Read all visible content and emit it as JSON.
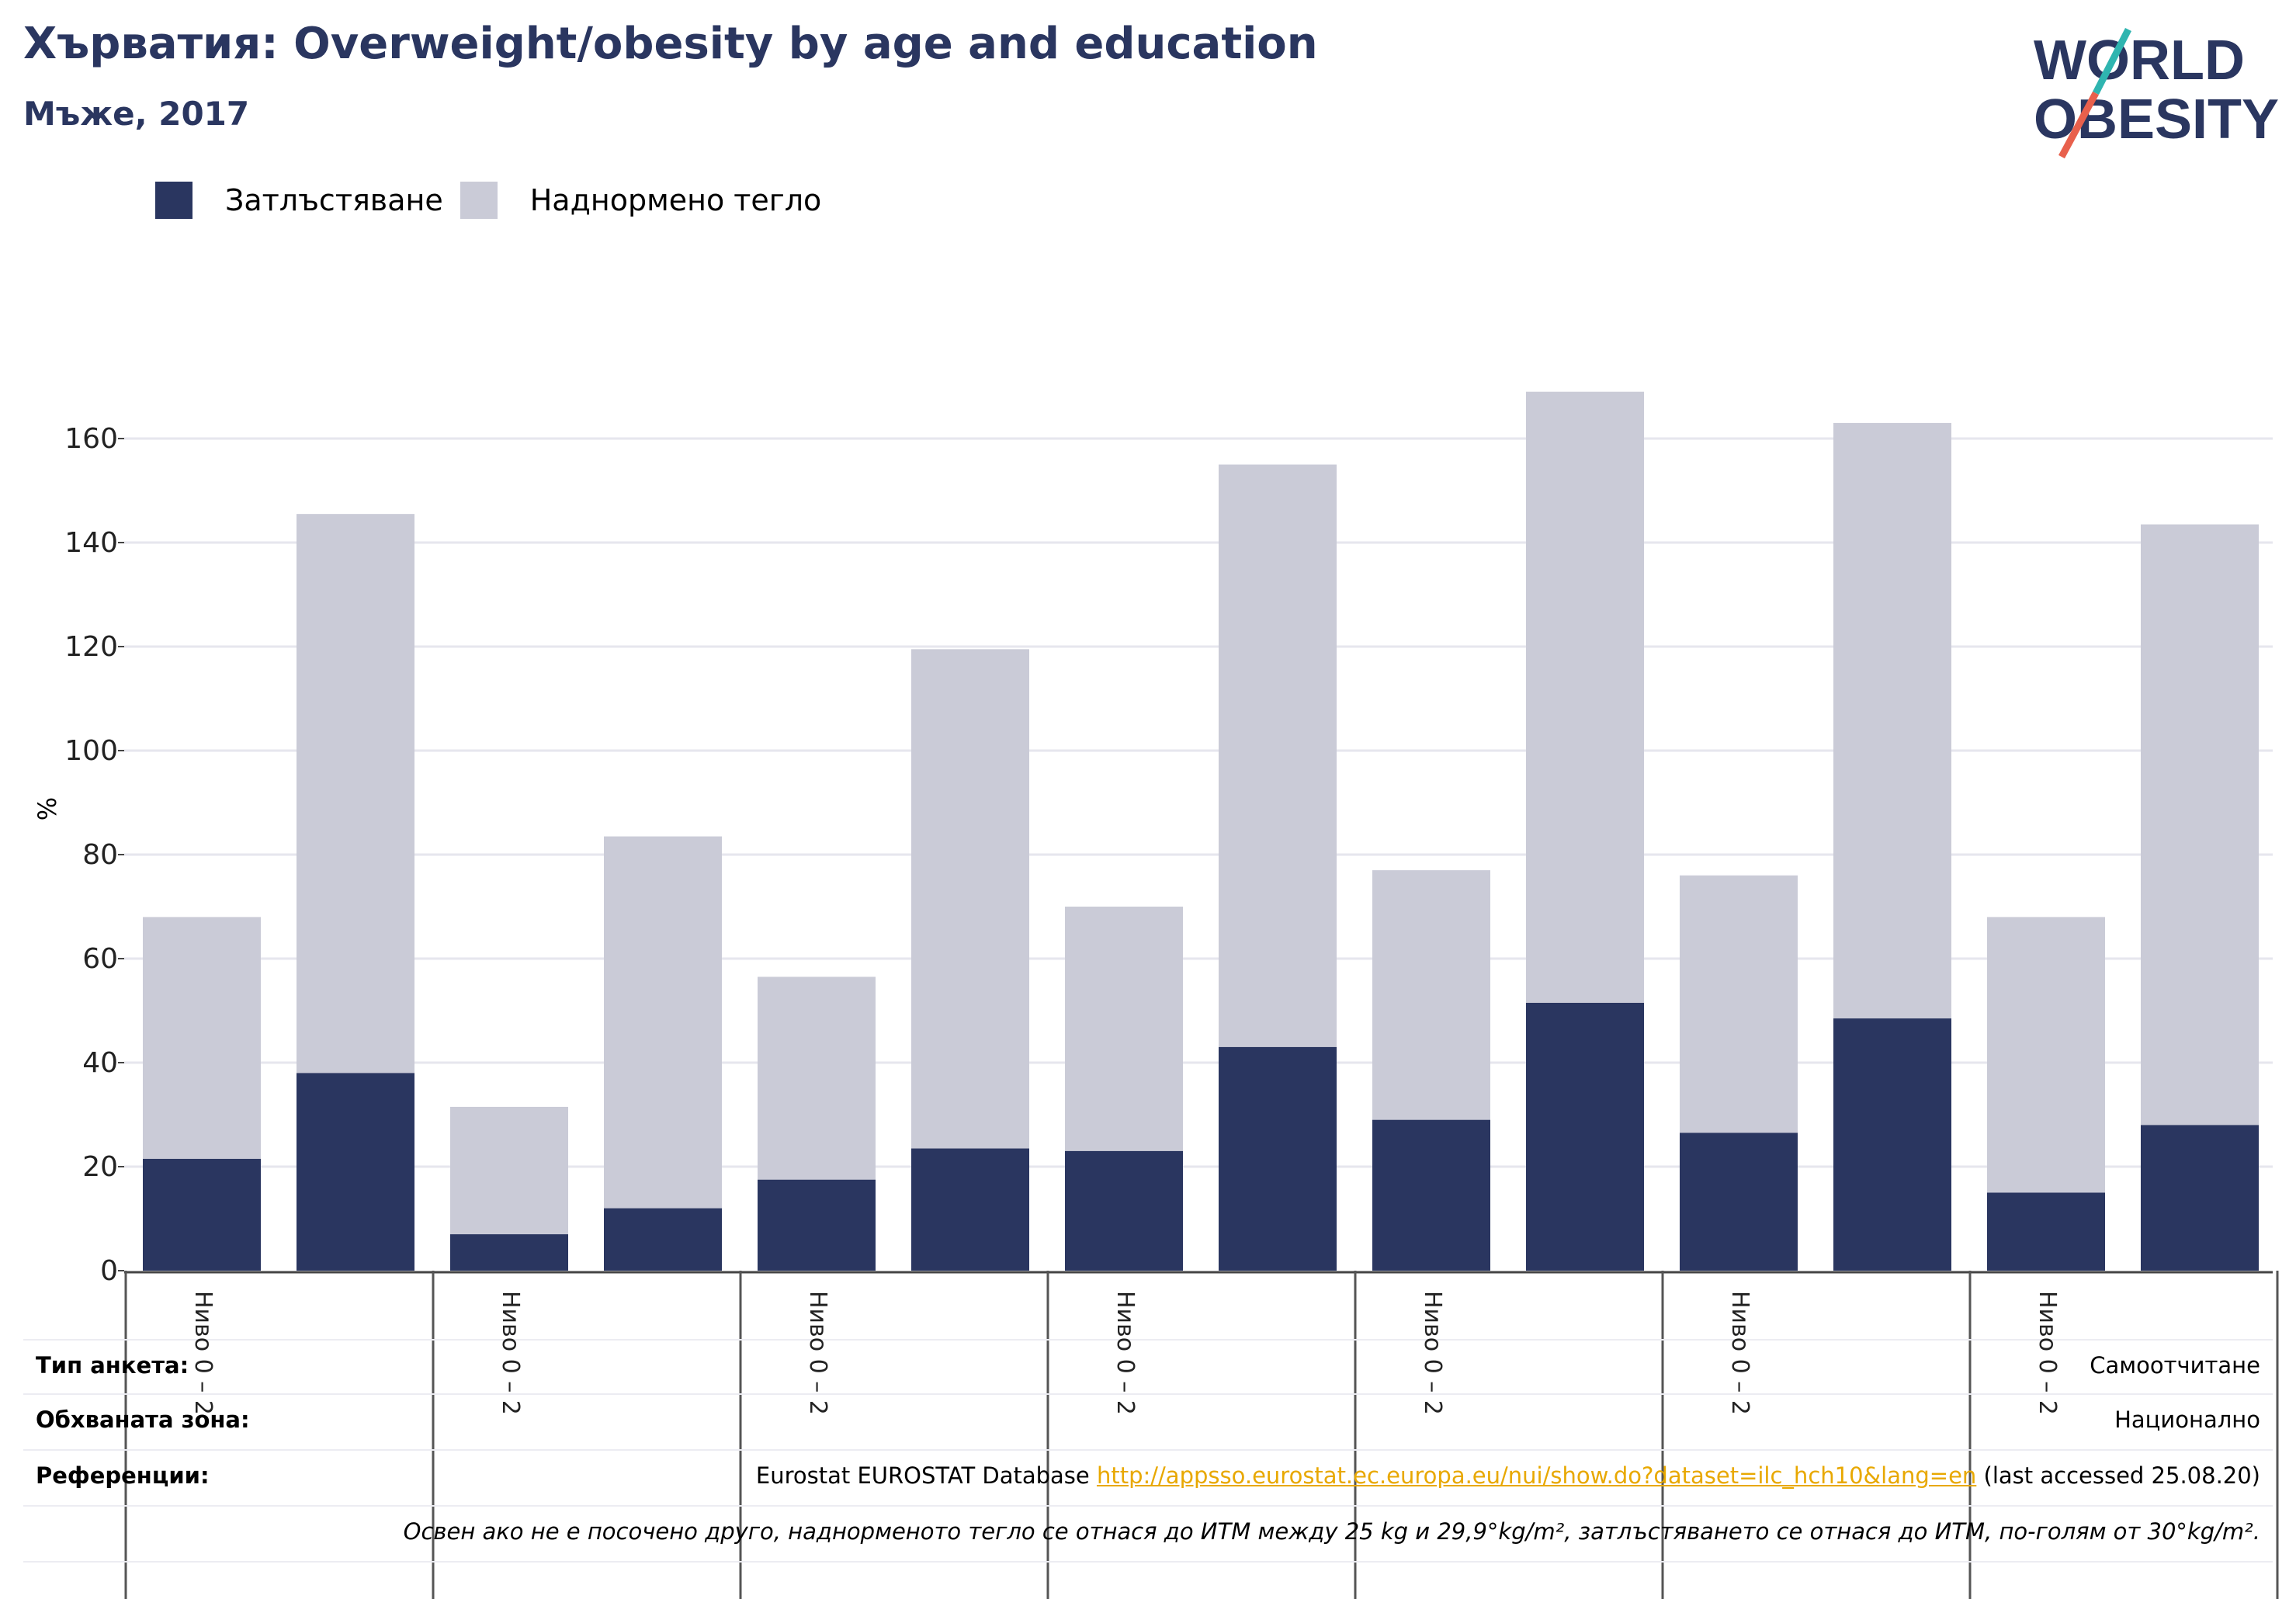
{
  "header": {
    "title": "Хърватия: Overweight/obesity by age and education",
    "subtitle": "Мъже, 2017"
  },
  "logo": {
    "line1": "WORLD",
    "line2": "OBESITY"
  },
  "colors": {
    "obesity": "#2a3660",
    "overweight": "#cacbd7",
    "title": "#2a3660",
    "link": "#e8a800",
    "logo_teal": "#2fb5b0",
    "logo_coral": "#e8604c"
  },
  "chart_data": {
    "type": "bar",
    "stacked": true,
    "ylabel": "%",
    "ylim": [
      0,
      170
    ],
    "yticks": [
      0,
      20,
      40,
      60,
      80,
      100,
      120,
      140,
      160
    ],
    "grid": true,
    "legend_position": "top-left",
    "category_groups": [
      {
        "label": "Ниво 0 – 2"
      },
      {
        "label": "Ниво 0 – 2"
      },
      {
        "label": "Ниво 0 – 2"
      },
      {
        "label": "Ниво 0 – 2"
      },
      {
        "label": "Ниво 0 – 2"
      },
      {
        "label": "Ниво 0 – 2"
      },
      {
        "label": "Ниво 0 – 2"
      }
    ],
    "series": [
      {
        "name": "Затлъстяване",
        "values": [
          21.5,
          38,
          7,
          12,
          17.5,
          23.5,
          23,
          43,
          29,
          51.5,
          26.5,
          48.5,
          15,
          28
        ]
      },
      {
        "name": "Наднормено тегло",
        "values": [
          46.5,
          107.5,
          24.5,
          71.5,
          39,
          96,
          47,
          112,
          48,
          117.5,
          49.5,
          114.5,
          53,
          115.5
        ]
      }
    ]
  },
  "meta": {
    "survey_label": "Тип анкета:",
    "survey_value": "Самоотчитане",
    "coverage_label": "Обхваната зона:",
    "coverage_value": "Национално",
    "references_label": "Референции:",
    "references_prefix": "Eurostat EUROSTAT Database ",
    "references_link": "http://appsso.eurostat.ec.europa.eu/nui/show.do?dataset=ilc_hch10&lang=en",
    "references_suffix": " (last accessed 25.08.20)",
    "note": "Освен ако не е посочено друго, наднорменото тегло се отнася до ИТМ между 25 kg и 29,9°kg/m², затлъстяването се отнася до ИТМ, по-голям от 30°kg/m²."
  }
}
